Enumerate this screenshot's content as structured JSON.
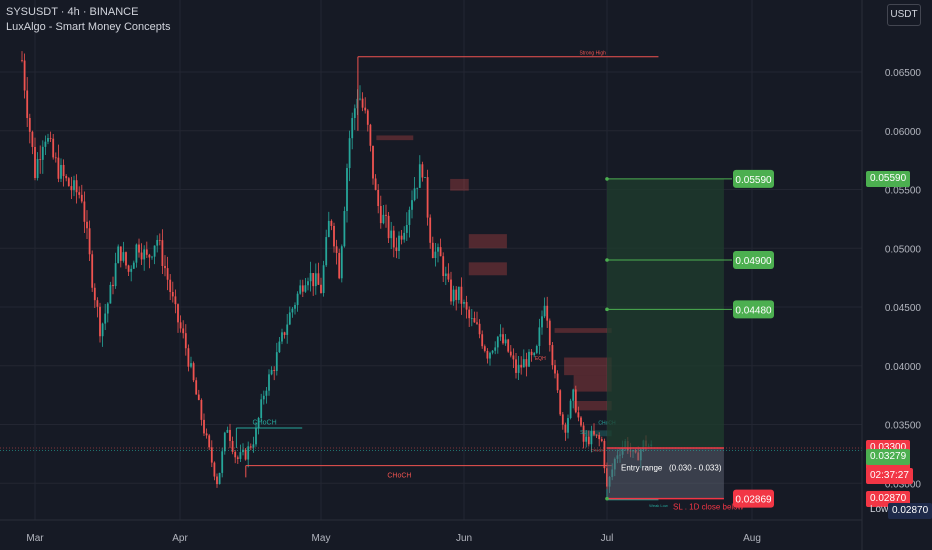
{
  "header": {
    "symbol_line": "SYSUSDT · 4h · BINANCE",
    "indicator": "LuxAlgo - Smart Money Concepts"
  },
  "currency_button": "USDT",
  "colors": {
    "background": "#161a25",
    "up": "#26a69a",
    "down": "#ef5350",
    "target_green": "#4caf50",
    "stop_red": "#f23645",
    "zone_green": "#1f3d2e",
    "zone_red": "#3d1f24"
  },
  "chart_data": {
    "type": "candlestick",
    "x_axis_ticks": [
      "Mar",
      "Apr",
      "May",
      "Jun",
      "Jul",
      "Aug"
    ],
    "y_axis_ticks": [
      "0.06500",
      "0.06000",
      "0.05500",
      "0.05000",
      "0.04500",
      "0.04000",
      "0.03500",
      "0.03000"
    ],
    "ylim": [
      0.0265,
      0.07
    ],
    "grid": true,
    "price_path": [
      [
        "Feb 25",
        0.066
      ],
      [
        "Feb 27",
        0.061
      ],
      [
        "Mar 1",
        0.0565
      ],
      [
        "Mar 3",
        0.06
      ],
      [
        "Mar 5",
        0.0575
      ],
      [
        "Mar 7",
        0.056
      ],
      [
        "Mar 9",
        0.055
      ],
      [
        "Mar 11",
        0.0545
      ],
      [
        "Mar 13",
        0.048
      ],
      [
        "Mar 15",
        0.043
      ],
      [
        "Mar 17",
        0.046
      ],
      [
        "Mar 19",
        0.05
      ],
      [
        "Mar 21",
        0.048
      ],
      [
        "Mar 23",
        0.0505
      ],
      [
        "Mar 25",
        0.049
      ],
      [
        "Mar 27",
        0.051
      ],
      [
        "Mar 29",
        0.048
      ],
      [
        "Mar 31",
        0.0445
      ],
      [
        "Apr 2",
        0.042
      ],
      [
        "Apr 5",
        0.0365
      ],
      [
        "Apr 7",
        0.033
      ],
      [
        "Apr 9",
        0.03
      ],
      [
        "Apr 11",
        0.035
      ],
      [
        "Apr 13",
        0.032
      ],
      [
        "Apr 15",
        0.0325
      ],
      [
        "Apr 17",
        0.034
      ],
      [
        "Apr 19",
        0.038
      ],
      [
        "Apr 21",
        0.04
      ],
      [
        "Apr 24",
        0.044
      ],
      [
        "Apr 26",
        0.046
      ],
      [
        "Apr 28",
        0.048
      ],
      [
        "May 1",
        0.0465
      ],
      [
        "May 3",
        0.053
      ],
      [
        "May 5",
        0.048
      ],
      [
        "May 7",
        0.059
      ],
      [
        "May 9",
        0.0635
      ],
      [
        "May 11",
        0.0605
      ],
      [
        "May 13",
        0.054
      ],
      [
        "May 15",
        0.052
      ],
      [
        "May 17",
        0.05
      ],
      [
        "May 19",
        0.052
      ],
      [
        "May 21",
        0.055
      ],
      [
        "May 23",
        0.057
      ],
      [
        "May 25",
        0.05
      ],
      [
        "May 27",
        0.049
      ],
      [
        "May 29",
        0.046
      ],
      [
        "May 31",
        0.046
      ],
      [
        "Jun 2",
        0.044
      ],
      [
        "Jun 4",
        0.043
      ],
      [
        "Jun 6",
        0.041
      ],
      [
        "Jun 8",
        0.0425
      ],
      [
        "Jun 10",
        0.0415
      ],
      [
        "Jun 12",
        0.0395
      ],
      [
        "Jun 14",
        0.0405
      ],
      [
        "Jun 16",
        0.0405
      ],
      [
        "Jun 18",
        0.046
      ],
      [
        "Jun 20",
        0.039
      ],
      [
        "Jun 22",
        0.0345
      ],
      [
        "Jun 24",
        0.0375
      ],
      [
        "Jun 26",
        0.0335
      ],
      [
        "Jun 28",
        0.034
      ],
      [
        "Jun 30",
        0.0335
      ],
      [
        "Jul 1",
        0.0295
      ],
      [
        "Jul 3",
        0.0325
      ],
      [
        "Jul 5",
        0.0335
      ],
      [
        "Jul 7",
        0.032
      ],
      [
        "Jul 9",
        0.0335
      ],
      [
        "Jul 11",
        0.0328
      ]
    ],
    "annotations": [
      {
        "text": "Strong High",
        "price": 0.0663
      },
      {
        "text": "CHoCH",
        "price": 0.0347
      },
      {
        "text": "CHoCH",
        "price": 0.0315
      },
      {
        "text": "EQH",
        "price": 0.0402
      },
      {
        "text": "SL",
        "price": 0.0344
      },
      {
        "text": "CHoCH",
        "price": 0.0347
      },
      {
        "text": "CHoCH",
        "price": 0.0327
      },
      {
        "text": "Weak Low",
        "price": 0.0284
      }
    ],
    "trade_plan": {
      "entry_label": "Entry range",
      "entry_range": "(0.030 - 0.033)",
      "entry_price": 0.033,
      "stop_label": "SL . 1D close below",
      "stop_price": 0.02869,
      "targets": [
        0.0448,
        0.049,
        0.0559
      ],
      "target_labels": [
        "0.04480",
        "0.04900",
        "0.05590"
      ],
      "stop_tag": "0.02869"
    },
    "right_axis_tags": {
      "target_top": "0.05590",
      "last_high": "0.03300",
      "current_price": "0.03279",
      "countdown": "02:37:27",
      "bid_price": "0.03279",
      "low_price": "0.02870",
      "low_label": "Low",
      "low_value": "0.02870"
    }
  }
}
